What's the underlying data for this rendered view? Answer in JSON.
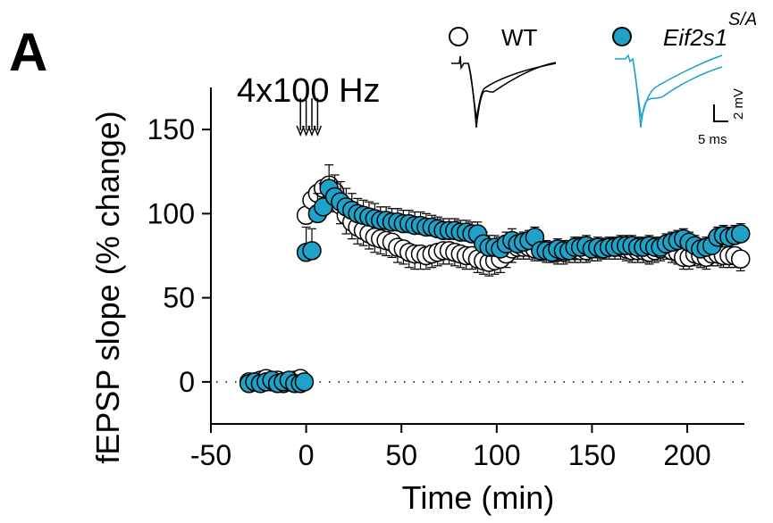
{
  "panel_label": "A",
  "chart_data": {
    "type": "scatter",
    "xlabel": "Time (min)",
    "ylabel": "fEPSP slope (% change)",
    "xlim": [
      -50,
      230
    ],
    "ylim": [
      -25,
      175
    ],
    "xticks": [
      -50,
      0,
      50,
      100,
      150,
      200
    ],
    "yticks": [
      0,
      50,
      100,
      150
    ],
    "baseline_reference": 0,
    "stimulus": {
      "label": "4x100 Hz",
      "arrow_times": [
        -3,
        0,
        3,
        6
      ]
    },
    "series": [
      {
        "name": "WT",
        "color": "#ffffff",
        "edgecolor": "#000000",
        "x": [
          -30,
          -27,
          -24,
          -21,
          -18,
          -15,
          -12,
          -9,
          -6,
          -3,
          0,
          3,
          6,
          9,
          12,
          15,
          18,
          21,
          24,
          27,
          30,
          33,
          36,
          39,
          42,
          45,
          48,
          51,
          54,
          57,
          60,
          63,
          66,
          69,
          72,
          75,
          78,
          81,
          84,
          87,
          90,
          93,
          96,
          99,
          102,
          105,
          108,
          111,
          114,
          117,
          120,
          123,
          126,
          129,
          132,
          135,
          138,
          141,
          144,
          147,
          150,
          153,
          156,
          159,
          162,
          165,
          168,
          171,
          174,
          177,
          180,
          183,
          186,
          189,
          192,
          195,
          198,
          201,
          204,
          207,
          210,
          213,
          216,
          219,
          222,
          225,
          228
        ],
        "y": [
          0,
          0,
          1,
          2,
          0,
          1,
          -1,
          0,
          1,
          2,
          99,
          108,
          112,
          115,
          117,
          113,
          105,
          99,
          95,
          92,
          90,
          88,
          86,
          85,
          84,
          83,
          80,
          79,
          77,
          76,
          76,
          75,
          76,
          77,
          78,
          78,
          77,
          76,
          75,
          75,
          73,
          72,
          71,
          72,
          73,
          76,
          79,
          80,
          80,
          80,
          79,
          79,
          78,
          78,
          77,
          77,
          78,
          78,
          78,
          78,
          79,
          79,
          80,
          80,
          80,
          80,
          79,
          78,
          78,
          78,
          77,
          78,
          79,
          80,
          78,
          77,
          74,
          74,
          76,
          75,
          74,
          76,
          76,
          75,
          75,
          75,
          73
        ],
        "error": [
          1,
          1,
          2,
          2,
          1,
          2,
          2,
          1,
          2,
          2,
          5,
          8,
          10,
          12,
          13,
          12,
          11,
          11,
          10,
          10,
          9,
          9,
          9,
          9,
          9,
          9,
          9,
          9,
          9,
          9,
          9,
          8,
          8,
          8,
          8,
          8,
          8,
          8,
          8,
          8,
          8,
          8,
          8,
          8,
          8,
          8,
          8,
          7,
          7,
          7,
          7,
          7,
          7,
          7,
          7,
          7,
          7,
          7,
          7,
          7,
          7,
          7,
          7,
          7,
          7,
          7,
          7,
          7,
          7,
          7,
          7,
          7,
          7,
          7,
          7,
          7,
          7,
          7,
          7,
          7,
          7,
          7,
          7,
          7,
          7,
          7,
          7
        ]
      },
      {
        "name": "Eif2s1",
        "name_superscript": "S/A",
        "color": "#1ea2c8",
        "edgecolor": "#000000",
        "x": [
          -30,
          -27,
          -24,
          -21,
          -18,
          -15,
          -12,
          -9,
          -6,
          -3,
          -1,
          0,
          3,
          6,
          9,
          12,
          15,
          18,
          21,
          24,
          27,
          30,
          33,
          36,
          39,
          42,
          45,
          48,
          51,
          54,
          57,
          60,
          63,
          66,
          69,
          72,
          75,
          78,
          81,
          84,
          87,
          90,
          93,
          96,
          99,
          102,
          105,
          108,
          111,
          114,
          117,
          120,
          123,
          126,
          129,
          132,
          135,
          138,
          141,
          144,
          147,
          150,
          153,
          156,
          159,
          162,
          165,
          168,
          171,
          174,
          177,
          180,
          183,
          186,
          189,
          192,
          195,
          198,
          201,
          204,
          207,
          210,
          213,
          216,
          219,
          222,
          225,
          228
        ],
        "y": [
          -1,
          0,
          -1,
          0,
          1,
          -1,
          0,
          1,
          -1,
          -1,
          0,
          77,
          78,
          100,
          104,
          115,
          110,
          107,
          104,
          102,
          100,
          99,
          98,
          97,
          96,
          96,
          95,
          95,
          94,
          94,
          93,
          93,
          92,
          92,
          91,
          90,
          90,
          90,
          89,
          89,
          88,
          88,
          82,
          80,
          80,
          79,
          82,
          84,
          82,
          83,
          84,
          86,
          78,
          78,
          77,
          79,
          78,
          78,
          80,
          80,
          81,
          79,
          80,
          79,
          80,
          80,
          81,
          81,
          81,
          80,
          80,
          81,
          80,
          80,
          82,
          83,
          84,
          85,
          83,
          81,
          79,
          80,
          81,
          86,
          87,
          86,
          87,
          88
        ],
        "error": [
          1,
          1,
          2,
          2,
          1,
          2,
          2,
          1,
          2,
          1,
          2,
          15,
          13,
          12,
          14,
          14,
          13,
          12,
          11,
          10,
          9,
          9,
          9,
          9,
          8,
          8,
          8,
          8,
          8,
          8,
          8,
          8,
          8,
          7,
          7,
          7,
          7,
          7,
          7,
          7,
          7,
          7,
          7,
          7,
          7,
          7,
          7,
          7,
          6,
          6,
          6,
          6,
          6,
          6,
          6,
          6,
          6,
          6,
          6,
          6,
          6,
          6,
          6,
          6,
          6,
          6,
          6,
          6,
          6,
          6,
          6,
          6,
          6,
          6,
          6,
          6,
          6,
          6,
          6,
          6,
          6,
          6,
          6,
          6,
          6,
          6,
          6,
          6
        ]
      }
    ],
    "insets": {
      "scale_voltage": "2 mV",
      "scale_time": "5 ms",
      "wt_trace_color": "#000000",
      "mutant_trace_color": "#1ea2c8"
    }
  }
}
